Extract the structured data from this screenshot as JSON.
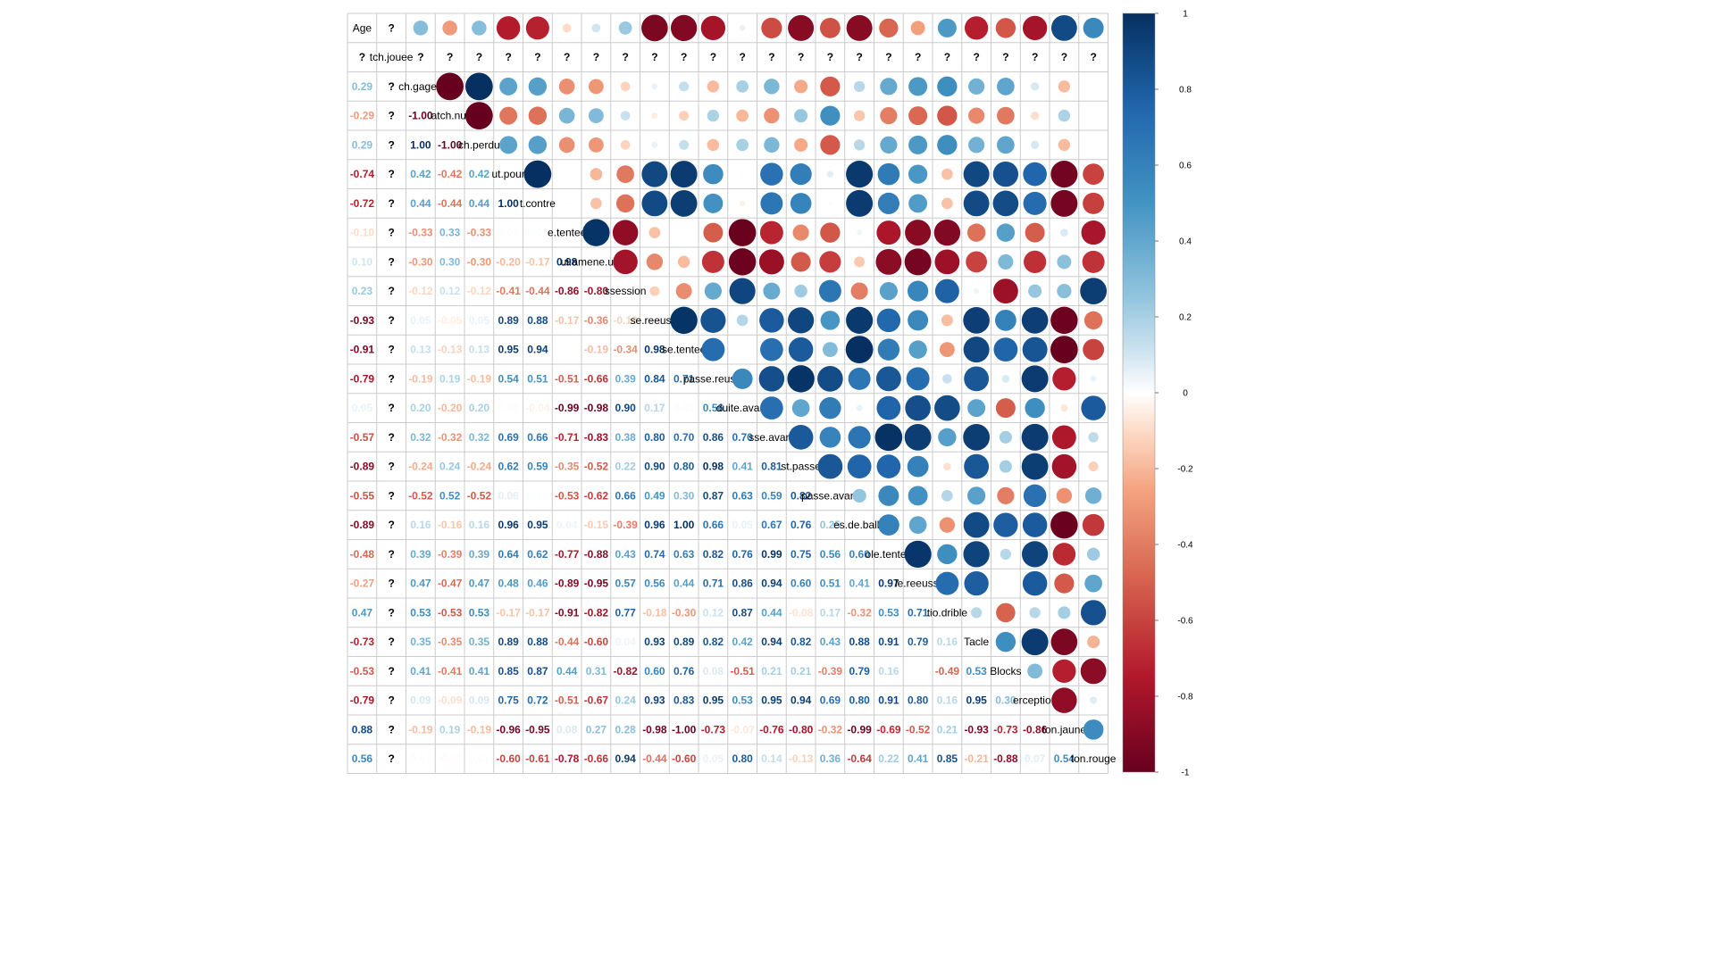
{
  "chart_data": {
    "type": "heatmap",
    "variables": [
      "Age",
      "tch.jouee",
      "ch.gagee",
      "atch.nul",
      "ch.perdu",
      "ut.pour",
      "t.contre",
      "e.tentee",
      "ui.amene.un.tir",
      "ssession",
      "se.reeussi",
      "se.tentee",
      "passe.reussi",
      "duite.avant",
      "sse.avant",
      "st.passe",
      "passe.avant",
      "es.de.balle",
      "ole.tentee",
      "le.reeussi",
      "tio.drible",
      "Tacle",
      "Blocks",
      "erception",
      "ton.jaune",
      "ton.rouge"
    ],
    "missing_label": "?",
    "lower_triangle": [
      [],
      [
        "?"
      ],
      [
        0.29,
        "?"
      ],
      [
        -0.29,
        "?",
        -1.0
      ],
      [
        0.29,
        "?",
        1.0,
        -1.0
      ],
      [
        -0.74,
        "?",
        0.42,
        -0.42,
        0.42
      ],
      [
        -0.72,
        "?",
        0.44,
        -0.44,
        0.44,
        1.0
      ],
      [
        -0.1,
        "?",
        -0.33,
        0.33,
        -0.33,
        0.01,
        0.01
      ],
      [
        0.1,
        "?",
        -0.3,
        0.3,
        -0.3,
        -0.2,
        -0.17,
        0.98
      ],
      [
        0.23,
        "?",
        -0.12,
        0.12,
        -0.12,
        -0.41,
        -0.44,
        -0.86,
        -0.8
      ],
      [
        -0.93,
        "?",
        0.05,
        -0.05,
        0.05,
        0.89,
        0.88,
        -0.17,
        -0.36,
        -0.13
      ],
      [
        -0.91,
        "?",
        0.13,
        -0.13,
        0.13,
        0.95,
        0.94,
        0.0,
        -0.19,
        -0.34,
        0.98
      ],
      [
        -0.79,
        "?",
        -0.19,
        0.19,
        -0.19,
        0.54,
        0.51,
        -0.51,
        -0.66,
        0.39,
        0.84,
        0.71
      ],
      [
        0.05,
        "?",
        0.2,
        -0.2,
        0.2,
        0.01,
        -0.04,
        -0.99,
        -0.98,
        0.9,
        0.17,
        0.01,
        0.56
      ],
      [
        -0.57,
        "?",
        0.32,
        -0.32,
        0.32,
        0.69,
        0.66,
        -0.71,
        -0.83,
        0.38,
        0.8,
        0.7,
        0.86,
        0.7
      ],
      [
        -0.89,
        "?",
        -0.24,
        0.24,
        -0.24,
        0.62,
        0.59,
        -0.35,
        -0.52,
        0.22,
        0.9,
        0.8,
        0.98,
        0.41,
        0.81
      ],
      [
        -0.55,
        "?",
        -0.52,
        0.52,
        -0.52,
        0.06,
        0.01,
        -0.53,
        -0.62,
        0.66,
        0.49,
        0.3,
        0.87,
        0.63,
        0.59,
        0.82
      ],
      [
        -0.89,
        "?",
        0.16,
        -0.16,
        0.16,
        0.96,
        0.95,
        0.04,
        -0.15,
        -0.39,
        0.96,
        1.0,
        0.66,
        0.05,
        0.67,
        0.76,
        0.25
      ],
      [
        -0.48,
        "?",
        0.39,
        -0.39,
        0.39,
        0.64,
        0.62,
        -0.77,
        -0.88,
        0.43,
        0.74,
        0.63,
        0.82,
        0.76,
        0.99,
        0.75,
        0.56,
        0.6
      ],
      [
        -0.27,
        "?",
        0.47,
        -0.47,
        0.47,
        0.48,
        0.46,
        -0.89,
        -0.95,
        0.57,
        0.56,
        0.44,
        0.71,
        0.86,
        0.94,
        0.6,
        0.51,
        0.41,
        0.97
      ],
      [
        0.47,
        "?",
        0.53,
        -0.53,
        0.53,
        -0.17,
        -0.17,
        -0.91,
        -0.82,
        0.77,
        -0.18,
        -0.3,
        0.12,
        0.87,
        0.44,
        -0.08,
        0.17,
        -0.32,
        0.53,
        0.71
      ],
      [
        -0.73,
        "?",
        0.35,
        -0.35,
        0.35,
        0.89,
        0.88,
        -0.44,
        -0.6,
        0.04,
        0.93,
        0.89,
        0.82,
        0.42,
        0.94,
        0.82,
        0.43,
        0.88,
        0.91,
        0.79,
        0.16
      ],
      [
        -0.53,
        "?",
        0.41,
        -0.41,
        0.41,
        0.85,
        0.87,
        0.44,
        0.31,
        -0.82,
        0.6,
        0.76,
        0.08,
        -0.51,
        0.21,
        0.21,
        -0.39,
        0.79,
        0.16,
        0.0,
        -0.49,
        0.53
      ],
      [
        -0.79,
        "?",
        0.09,
        -0.09,
        0.09,
        0.75,
        0.72,
        -0.51,
        -0.67,
        0.24,
        0.93,
        0.83,
        0.95,
        0.53,
        0.95,
        0.94,
        0.69,
        0.8,
        0.91,
        0.8,
        0.16,
        0.95,
        0.3
      ],
      [
        0.88,
        "?",
        -0.19,
        0.19,
        -0.19,
        -0.96,
        -0.95,
        0.08,
        0.27,
        0.28,
        -0.98,
        -1.0,
        -0.73,
        -0.07,
        -0.76,
        -0.8,
        -0.32,
        -0.99,
        -0.69,
        -0.52,
        0.21,
        -0.93,
        -0.73,
        -0.86
      ],
      [
        0.56,
        "?",
        0.01,
        -0.01,
        0.01,
        -0.6,
        -0.61,
        -0.78,
        -0.66,
        0.94,
        -0.44,
        -0.6,
        0.05,
        0.8,
        0.14,
        -0.13,
        0.36,
        -0.64,
        0.22,
        0.41,
        0.85,
        -0.21,
        -0.88,
        0.07,
        0.54
      ]
    ],
    "colorbar": {
      "range": [
        -1,
        1
      ],
      "ticks": [
        "1",
        "0.8",
        "0.6",
        "0.4",
        "0.2",
        "0",
        "-0.2",
        "-0.4",
        "-0.6",
        "-0.8",
        "-1"
      ]
    },
    "colors": {
      "strong_negative": "#67001F",
      "mid_negative": "#D6604D",
      "light_negative": "#FDDBC7",
      "neutral": "#FFFFFF",
      "light_positive": "#D1E5F0",
      "mid_positive": "#4393C3",
      "strong_positive": "#053061",
      "grid": "#cccccc"
    }
  }
}
